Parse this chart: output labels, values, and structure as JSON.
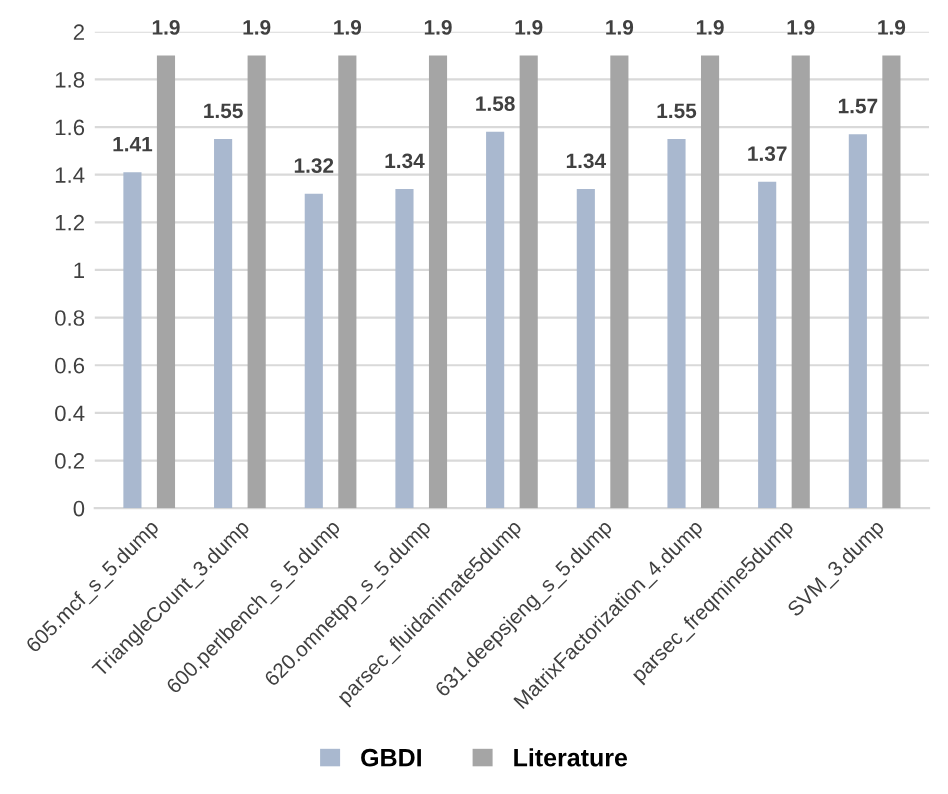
{
  "chart_data": {
    "type": "bar",
    "categories": [
      "605.mcf_s_5.dump",
      "TriangleCount_3.dump",
      "600.perlbench_s_5.dump",
      "620.omnetpp_s_5.dump",
      "parsec_fluidanimate5dump",
      "631.deepsjeng_s_5.dump",
      "MatrixFactorization_4.dump",
      "parsec_freqmine5dump",
      "SVM_3.dump"
    ],
    "series": [
      {
        "name": "GBDI",
        "color": "#a9b8cf",
        "values": [
          1.41,
          1.55,
          1.32,
          1.34,
          1.58,
          1.34,
          1.55,
          1.37,
          1.57
        ]
      },
      {
        "name": "Literature",
        "color": "#a5a5a5",
        "values": [
          1.9,
          1.9,
          1.9,
          1.9,
          1.9,
          1.9,
          1.9,
          1.9,
          1.9
        ]
      }
    ],
    "ylim": [
      0,
      2
    ],
    "yticks": [
      0,
      0.2,
      0.4,
      0.6,
      0.8,
      1,
      1.2,
      1.4,
      1.6,
      1.8,
      2
    ],
    "grid": "y",
    "data_labels": true,
    "legend": "bottom"
  }
}
